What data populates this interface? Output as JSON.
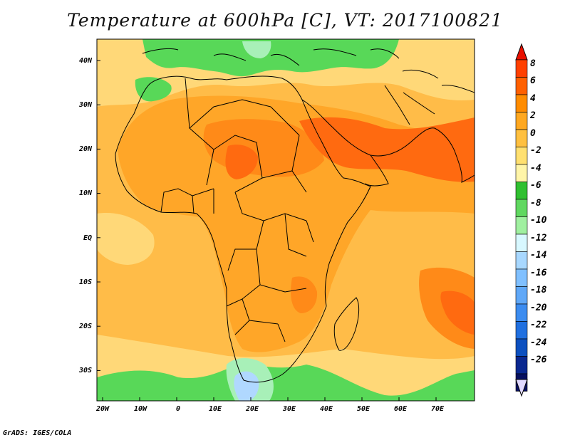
{
  "title": "Temperature at 600hPa [C], VT: 2017100821",
  "credit": "GrADS: IGES/COLA",
  "lon_labels": [
    "20W",
    "10W",
    "0",
    "10E",
    "20E",
    "30E",
    "40E",
    "50E",
    "60E",
    "70E"
  ],
  "lat_labels": [
    "40N",
    "30N",
    "20N",
    "10N",
    "EQ",
    "10S",
    "20S",
    "30S"
  ],
  "colorbar": {
    "labels": [
      "8",
      "6",
      "4",
      "2",
      "0",
      "-2",
      "-4",
      "-6",
      "-8",
      "-10",
      "-12",
      "-14",
      "-16",
      "-18",
      "-20",
      "-22",
      "-24",
      "-26"
    ],
    "colors": [
      "#ff4000",
      "#ff6000",
      "#ff8c00",
      "#ffa820",
      "#ffc040",
      "#ffe070",
      "#fff5a8",
      "#30c030",
      "#60d860",
      "#a0f0a0",
      "#d8f8ff",
      "#a8d8ff",
      "#80c0ff",
      "#60a8f8",
      "#3c8cf0",
      "#2070e0",
      "#0c50c0",
      "#0a2890",
      "#071060"
    ],
    "extend_top": "#e81000",
    "extend_bottom": "#e0d8ff"
  },
  "palette": {
    "ocean": "#ffbc48",
    "land": "#ffa628",
    "hot": "#ff8a18",
    "hotter": "#ff6a10",
    "cool": "#ffd878",
    "cold": "#58d858",
    "colder": "#a8f0b8",
    "coldest": "#b0d8ff"
  }
}
